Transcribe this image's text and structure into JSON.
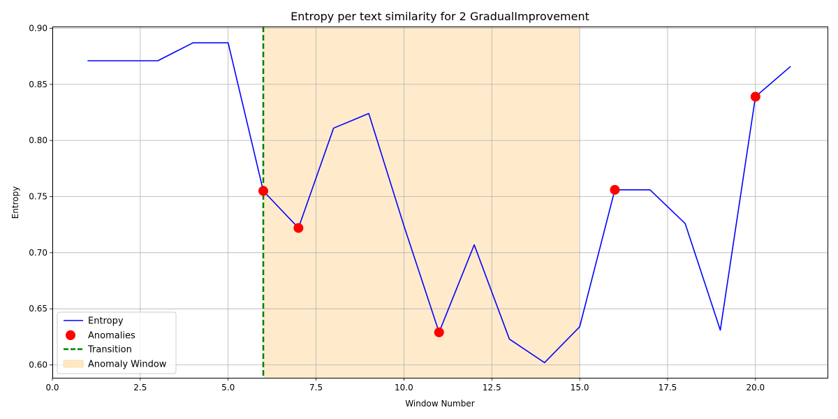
{
  "chart_data": {
    "type": "line",
    "title": "Entropy per text similarity for 2 GradualImprovement",
    "xlabel": "Window Number",
    "ylabel": "Entropy",
    "xlim": [
      0,
      22.05
    ],
    "ylim": [
      0.5885,
      0.9015
    ],
    "xticks": [
      0,
      2.5,
      5,
      7.5,
      10,
      12.5,
      15,
      17.5,
      20
    ],
    "xtick_labels": [
      "0.0",
      "2.5",
      "5.0",
      "7.5",
      "10.0",
      "12.5",
      "15.0",
      "17.5",
      "20.0"
    ],
    "yticks": [
      0.6,
      0.65,
      0.7,
      0.75,
      0.8,
      0.85,
      0.9
    ],
    "ytick_labels": [
      "0.60",
      "0.65",
      "0.70",
      "0.75",
      "0.80",
      "0.85",
      "0.90"
    ],
    "grid": true,
    "legend_position": "lower-left",
    "series": [
      {
        "name": "Entropy",
        "color": "#0000ff",
        "x": [
          1,
          2,
          3,
          4,
          5,
          6,
          7,
          8,
          9,
          10,
          11,
          12,
          13,
          14,
          15,
          16,
          17,
          18,
          19,
          20,
          21
        ],
        "y": [
          0.871,
          0.871,
          0.871,
          0.887,
          0.887,
          0.755,
          0.722,
          0.811,
          0.824,
          0.724,
          0.629,
          0.707,
          0.623,
          0.602,
          0.634,
          0.756,
          0.756,
          0.726,
          0.631,
          0.839,
          0.866
        ]
      }
    ],
    "anomalies": {
      "name": "Anomalies",
      "color": "#ff0000",
      "x": [
        6,
        7,
        11,
        16,
        20
      ],
      "y": [
        0.755,
        0.722,
        0.629,
        0.756,
        0.839
      ]
    },
    "transition": {
      "name": "Transition",
      "color": "#008000",
      "x": 6
    },
    "anomaly_window": {
      "name": "Anomaly Window",
      "color": "#ffe8c2",
      "x_start": 6,
      "x_end": 15
    }
  }
}
